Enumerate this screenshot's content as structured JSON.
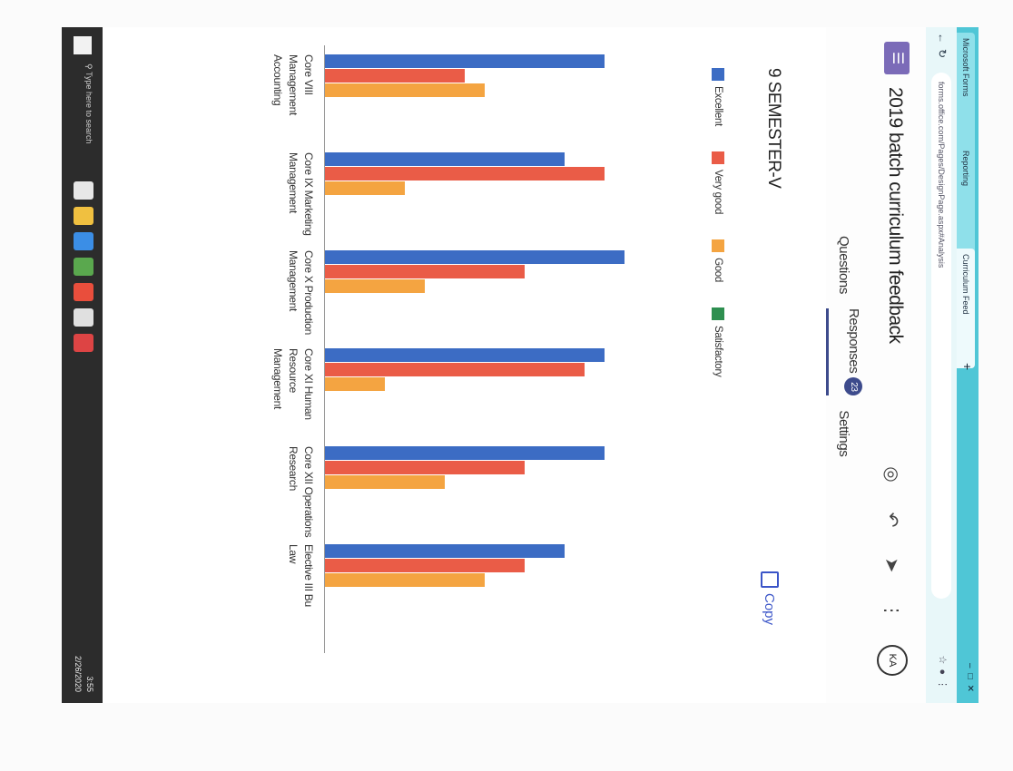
{
  "browser": {
    "tabs": [
      "Microsoft Forms",
      "Reporting",
      "Curriculum Feed"
    ],
    "new_tab": "+",
    "url": "forms.office.com/Pages/DesignPage.aspx#Analysis"
  },
  "header": {
    "form_title": "2019 batch curriculum feedback",
    "tabs": {
      "questions": "Questions",
      "responses": "Responses",
      "responses_count": "23",
      "settings": "Settings"
    },
    "avatar": "KA"
  },
  "section": {
    "title": "9 SEMESTER-V",
    "copy_label": "Copy"
  },
  "chart_data": {
    "type": "bar",
    "categories": [
      [
        "Core VIII",
        "Management",
        "Accounting"
      ],
      [
        "Core IX Marketing",
        "Management"
      ],
      [
        "Core X Production",
        "Management"
      ],
      [
        "Core XI Human",
        "Resource",
        "Management"
      ],
      [
        "Core XII Operations",
        "Research"
      ],
      [
        "Elective III Bu",
        "Law"
      ]
    ],
    "series": [
      {
        "name": "Excellent",
        "color": "#3c6cc4",
        "values": [
          14,
          12,
          15,
          14,
          14,
          12
        ]
      },
      {
        "name": "Very good",
        "color": "#ea5c47",
        "values": [
          7,
          14,
          10,
          13,
          10,
          10
        ]
      },
      {
        "name": "Good",
        "color": "#f4a441",
        "values": [
          8,
          4,
          5,
          3,
          6,
          8
        ]
      },
      {
        "name": "Satisfactory",
        "color": "#2e8f50",
        "values": [
          0,
          0,
          0,
          0,
          0,
          0
        ]
      }
    ],
    "grid": false,
    "legend_position": "top"
  },
  "taskbar": {
    "search_placeholder": "Type here to search",
    "clock_time": "3:55",
    "clock_date": "2/26/2020"
  }
}
